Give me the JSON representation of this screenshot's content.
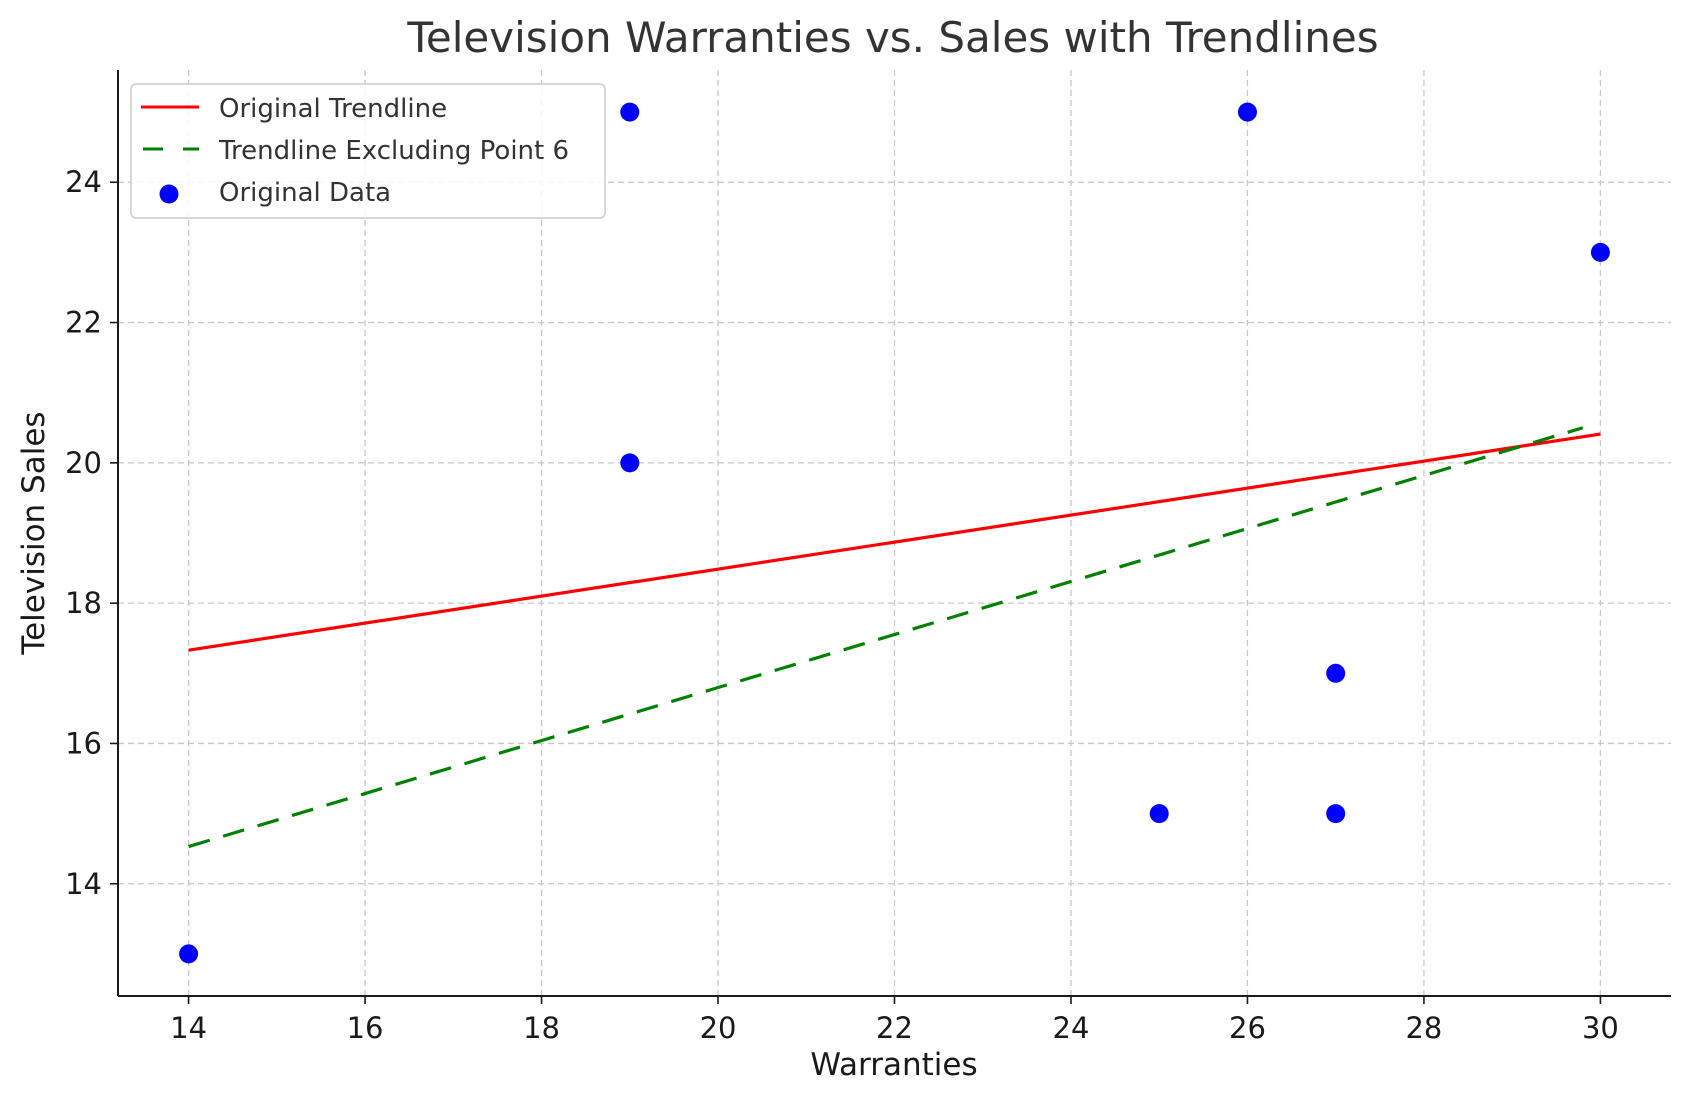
{
  "chart_data": {
    "type": "scatter",
    "title": "Television Warranties vs. Sales with Trendlines",
    "xlabel": "Warranties",
    "ylabel": "Television Sales",
    "xlim": [
      13.2,
      30.8
    ],
    "ylim": [
      12.4,
      25.6
    ],
    "xticks": [
      14,
      16,
      18,
      20,
      22,
      24,
      26,
      28,
      30
    ],
    "yticks": [
      14,
      16,
      18,
      20,
      22,
      24
    ],
    "grid": true,
    "legend_position": "top-left",
    "series": [
      {
        "name": "Original Trendline",
        "kind": "line",
        "style": "solid",
        "color": "#ff0000",
        "x": [
          14,
          30
        ],
        "y": [
          17.33,
          20.41
        ]
      },
      {
        "name": "Trendline Excluding Point 6",
        "kind": "line",
        "style": "dashed",
        "color": "#008000",
        "x": [
          14,
          29.8
        ],
        "y": [
          14.53,
          20.5
        ]
      },
      {
        "name": "Original Data",
        "kind": "scatter",
        "color": "#0000ff",
        "x": [
          14,
          19,
          19,
          25,
          26,
          27,
          27,
          30
        ],
        "y": [
          13,
          20,
          25,
          15,
          25,
          17,
          15,
          23
        ]
      }
    ]
  }
}
